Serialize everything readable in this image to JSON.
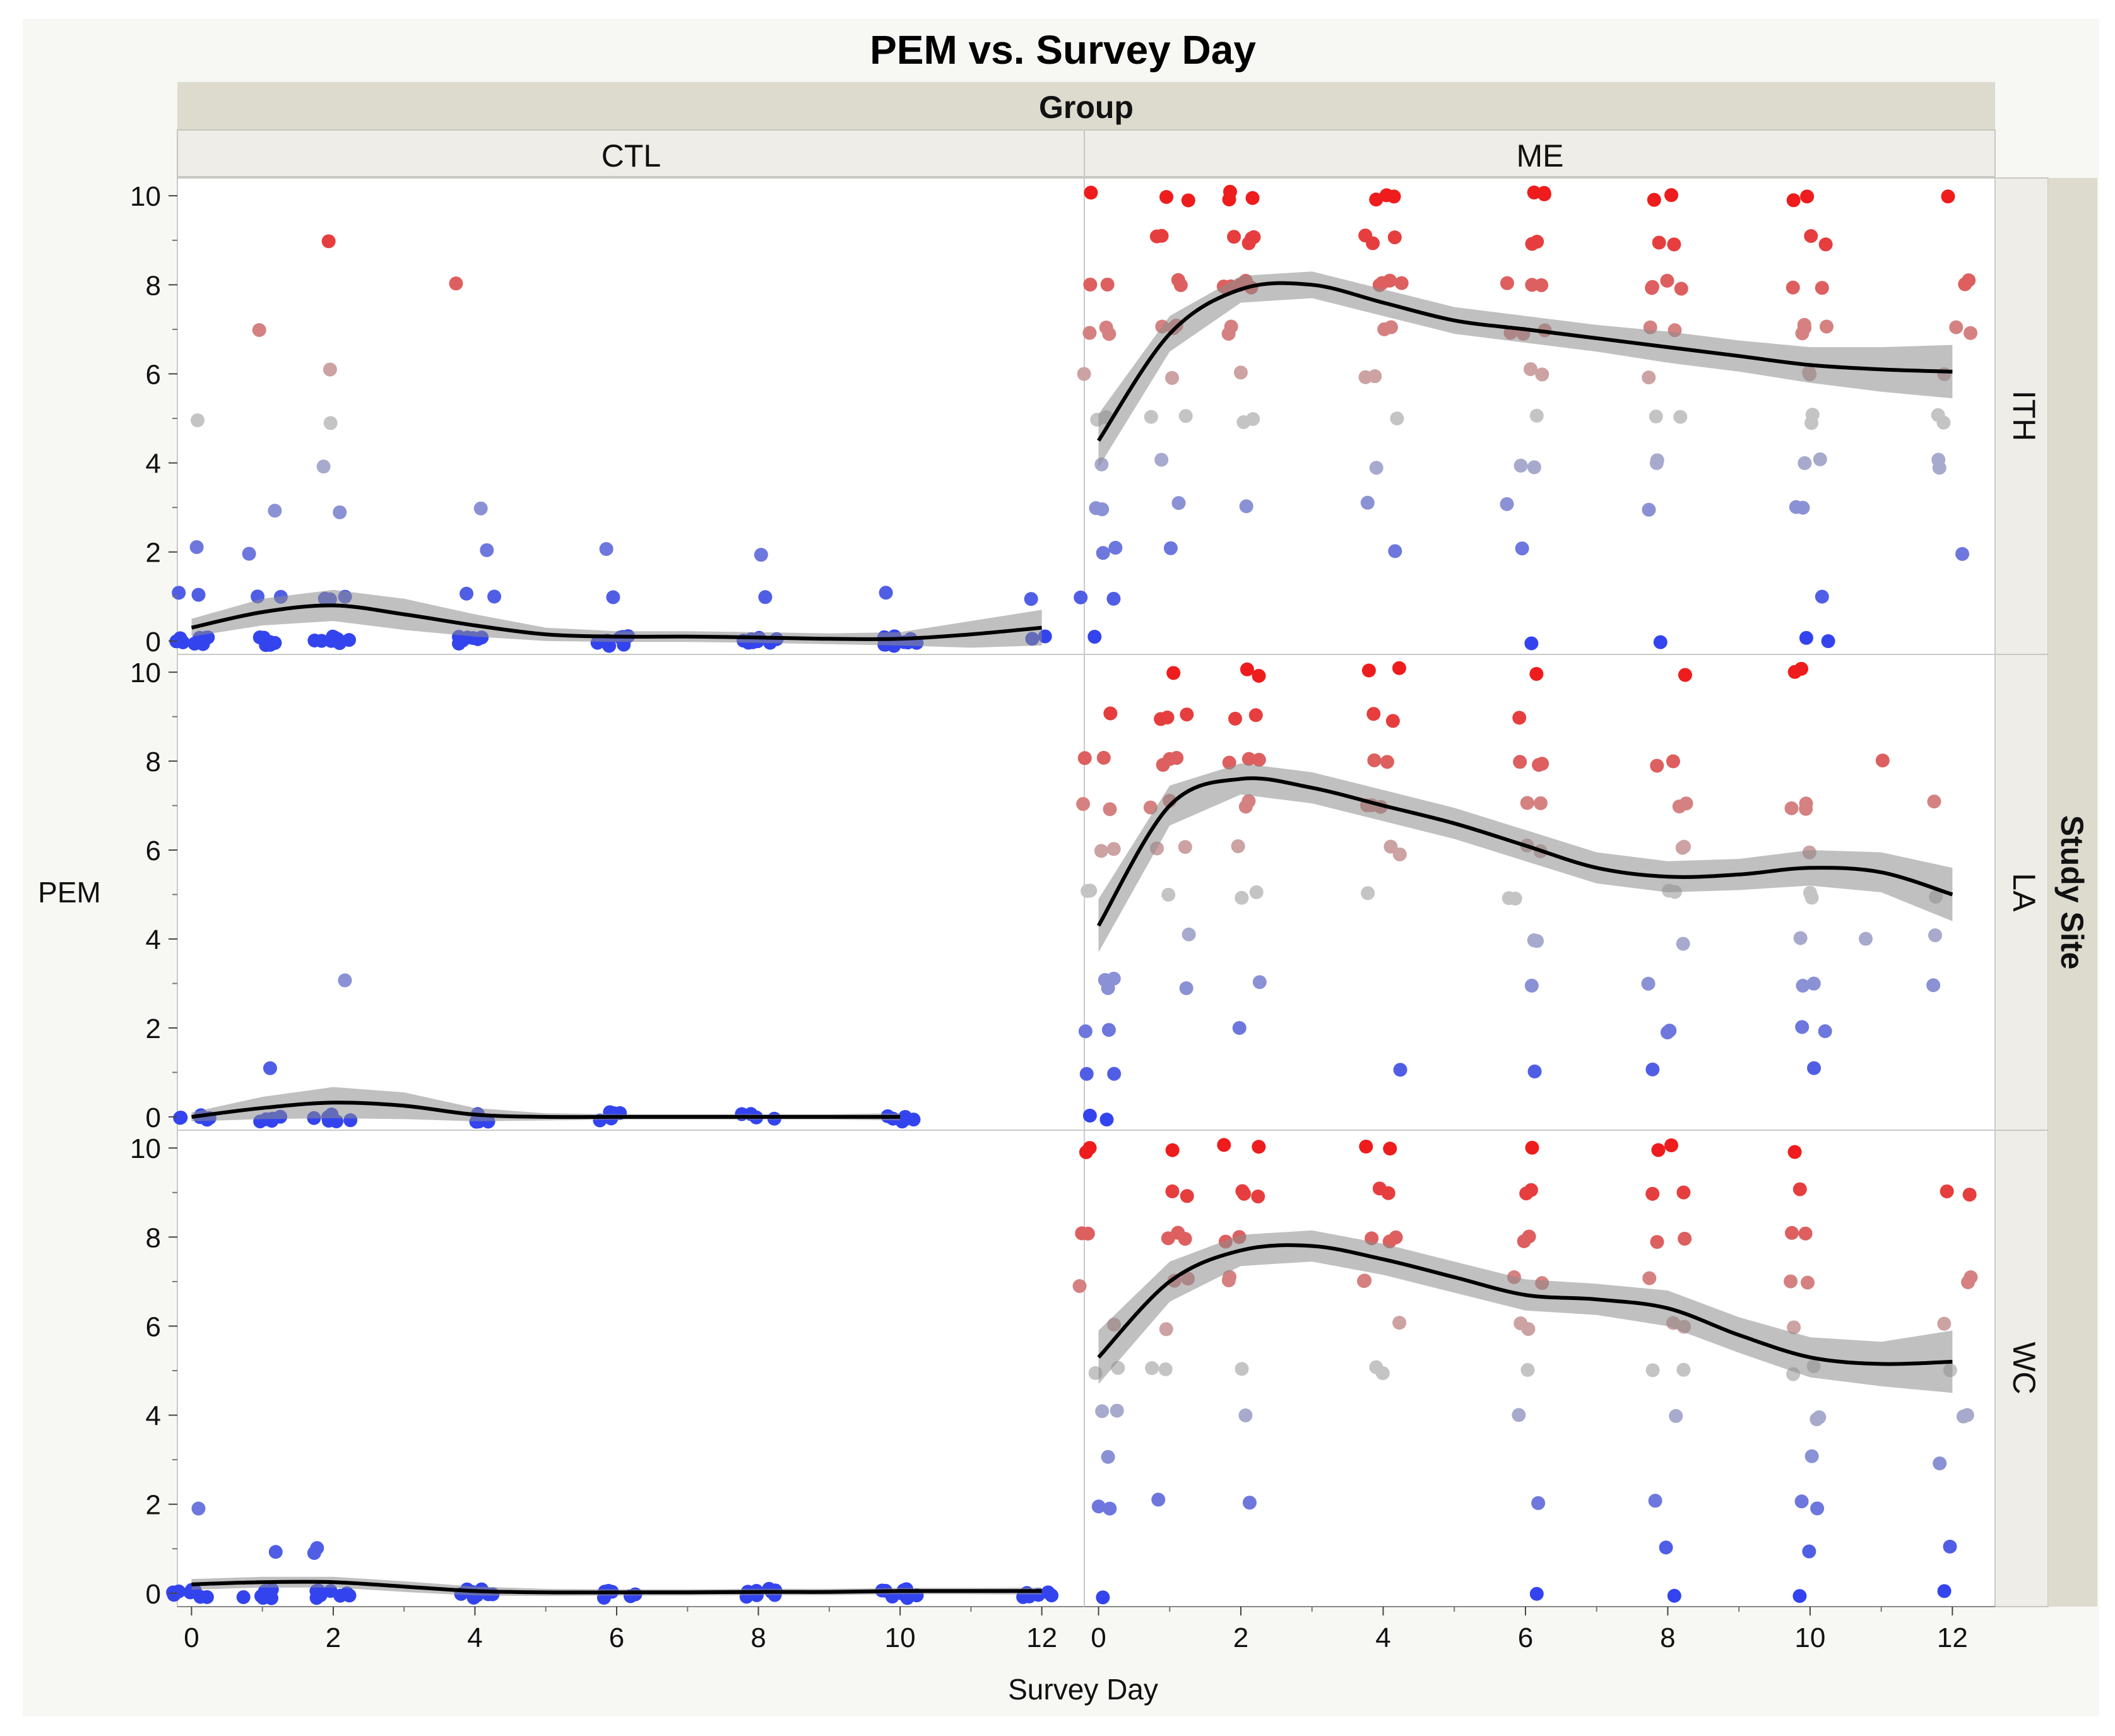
{
  "chart_data": {
    "type": "scatter",
    "title": "PEM vs. Survey Day",
    "xlabel": "Survey Day",
    "ylabel": "PEM",
    "column_group_label": "Group",
    "row_group_label": "Study Site",
    "columns": [
      "CTL",
      "ME"
    ],
    "rows": [
      "ITH",
      "LA",
      "WC"
    ],
    "xlim": [
      -0.2,
      12.6
    ],
    "ylim": [
      -0.3,
      10.4
    ],
    "xticks": [
      0,
      2,
      4,
      6,
      8,
      10,
      12
    ],
    "yticks": [
      0,
      2,
      4,
      6,
      8,
      10
    ],
    "color_scale": {
      "low": "#3344ee",
      "mid": "#c4c4c4",
      "high": "#ee1c1c",
      "mid_value": 5
    },
    "panels": [
      {
        "group": "CTL",
        "site": "ITH",
        "smoother": {
          "x": [
            0,
            1,
            2,
            3,
            4,
            5,
            6,
            7,
            8,
            9,
            10,
            11,
            12
          ],
          "y": [
            0.3,
            0.65,
            0.8,
            0.6,
            0.35,
            0.15,
            0.1,
            0.1,
            0.08,
            0.05,
            0.05,
            0.15,
            0.3
          ],
          "band": [
            0.2,
            0.3,
            0.35,
            0.35,
            0.25,
            0.15,
            0.12,
            0.12,
            0.12,
            0.12,
            0.15,
            0.3,
            0.4
          ]
        },
        "points": [
          {
            "day": 0,
            "values": [
              5,
              2,
              1,
              1,
              0,
              0,
              0,
              0,
              0,
              0,
              0,
              0,
              0,
              0
            ]
          },
          {
            "day": 1,
            "values": [
              7,
              3,
              2,
              1,
              1,
              0,
              0,
              0,
              0,
              0,
              0,
              0,
              0
            ]
          },
          {
            "day": 2,
            "values": [
              9,
              6,
              5,
              4,
              3,
              1,
              1,
              1,
              0,
              0,
              0,
              0,
              0,
              0,
              0,
              0
            ]
          },
          {
            "day": 4,
            "values": [
              8,
              3,
              2,
              1,
              1,
              0,
              0,
              0,
              0,
              0,
              0,
              0
            ]
          },
          {
            "day": 6,
            "values": [
              2,
              1,
              0,
              0,
              0,
              0,
              0,
              0,
              0,
              0,
              0,
              0
            ]
          },
          {
            "day": 8,
            "values": [
              2,
              1,
              0,
              0,
              0,
              0,
              0,
              0,
              0,
              0
            ]
          },
          {
            "day": 10,
            "values": [
              1,
              0,
              0,
              0,
              0,
              0,
              0,
              0,
              0,
              0,
              0
            ]
          },
          {
            "day": 12,
            "values": [
              1,
              0,
              0
            ]
          }
        ]
      },
      {
        "group": "ME",
        "site": "ITH",
        "smoother": {
          "x": [
            0,
            1,
            2,
            3,
            4,
            5,
            6,
            7,
            8,
            9,
            10,
            11,
            12
          ],
          "y": [
            4.5,
            6.9,
            7.9,
            8.0,
            7.6,
            7.2,
            7.0,
            6.8,
            6.6,
            6.4,
            6.2,
            6.1,
            6.05
          ],
          "band": [
            0.6,
            0.4,
            0.3,
            0.3,
            0.3,
            0.3,
            0.3,
            0.3,
            0.35,
            0.35,
            0.4,
            0.5,
            0.6
          ]
        },
        "points": [
          {
            "day": 0,
            "values": [
              10,
              8,
              8,
              7,
              7,
              7,
              6,
              5,
              5,
              4,
              3,
              3,
              2,
              2,
              1,
              1,
              0
            ]
          },
          {
            "day": 1,
            "values": [
              10,
              10,
              9,
              9,
              8,
              8,
              7,
              7,
              7,
              6,
              5,
              5,
              4,
              3,
              2
            ]
          },
          {
            "day": 2,
            "values": [
              10,
              10,
              10,
              9,
              9,
              9,
              9,
              8,
              8,
              8,
              8,
              8,
              8,
              7,
              7,
              6,
              5,
              5,
              3
            ]
          },
          {
            "day": 4,
            "values": [
              10,
              10,
              10,
              9,
              9,
              9,
              8,
              8,
              8,
              8,
              7,
              7,
              6,
              6,
              5,
              4,
              3,
              2
            ]
          },
          {
            "day": 6,
            "values": [
              10,
              10,
              10,
              9,
              9,
              8,
              8,
              8,
              7,
              7,
              7,
              6,
              6,
              5,
              4,
              4,
              3,
              2,
              0
            ]
          },
          {
            "day": 8,
            "values": [
              10,
              10,
              9,
              9,
              8,
              8,
              8,
              8,
              7,
              7,
              6,
              5,
              5,
              4,
              4,
              3,
              0
            ]
          },
          {
            "day": 10,
            "values": [
              10,
              10,
              9,
              9,
              8,
              8,
              7,
              7,
              7,
              7,
              6,
              6,
              5,
              5,
              4,
              4,
              3,
              3,
              1,
              0,
              0
            ]
          },
          {
            "day": 12,
            "values": [
              10,
              8,
              8,
              7,
              7,
              6,
              5,
              5,
              4,
              4,
              2
            ]
          }
        ]
      },
      {
        "group": "CTL",
        "site": "LA",
        "smoother": {
          "x": [
            0,
            1,
            2,
            3,
            4,
            5,
            6,
            7,
            8,
            9,
            10
          ],
          "y": [
            0.0,
            0.2,
            0.32,
            0.25,
            0.05,
            0.0,
            0.0,
            0.0,
            0.0,
            0.0,
            0.0
          ],
          "band": [
            0.1,
            0.25,
            0.35,
            0.3,
            0.15,
            0.08,
            0.06,
            0.06,
            0.06,
            0.06,
            0.08
          ]
        },
        "points": [
          {
            "day": 0,
            "values": [
              0,
              0,
              0,
              0,
              0,
              0
            ]
          },
          {
            "day": 1,
            "values": [
              1,
              0,
              0,
              0,
              0,
              0
            ]
          },
          {
            "day": 2,
            "values": [
              3,
              0,
              0,
              0,
              0,
              0,
              0
            ]
          },
          {
            "day": 4,
            "values": [
              0,
              0,
              0,
              0
            ]
          },
          {
            "day": 6,
            "values": [
              0,
              0,
              0,
              0,
              0
            ]
          },
          {
            "day": 8,
            "values": [
              0,
              0,
              0,
              0
            ]
          },
          {
            "day": 10,
            "values": [
              0,
              0,
              0,
              0,
              0,
              0
            ]
          }
        ]
      },
      {
        "group": "ME",
        "site": "LA",
        "smoother": {
          "x": [
            0,
            1,
            2,
            3,
            4,
            5,
            6,
            7,
            8,
            9,
            10,
            11,
            12
          ],
          "y": [
            4.3,
            7.0,
            7.6,
            7.4,
            7.0,
            6.6,
            6.1,
            5.6,
            5.4,
            5.45,
            5.6,
            5.5,
            5.0
          ],
          "band": [
            0.6,
            0.45,
            0.35,
            0.35,
            0.35,
            0.35,
            0.35,
            0.35,
            0.35,
            0.35,
            0.4,
            0.45,
            0.6
          ]
        },
        "points": [
          {
            "day": 0,
            "values": [
              9,
              8,
              8,
              7,
              7,
              6,
              6,
              5,
              5,
              3,
              3,
              3,
              2,
              2,
              1,
              1,
              0,
              0
            ]
          },
          {
            "day": 1,
            "values": [
              10,
              9,
              9,
              9,
              8,
              8,
              8,
              7,
              7,
              6,
              6,
              5,
              4,
              3
            ]
          },
          {
            "day": 2,
            "values": [
              10,
              10,
              9,
              9,
              8,
              8,
              8,
              7,
              7,
              6,
              5,
              5,
              3,
              2
            ]
          },
          {
            "day": 4,
            "values": [
              10,
              10,
              9,
              9,
              8,
              8,
              7,
              7,
              7,
              6,
              6,
              5,
              1
            ]
          },
          {
            "day": 6,
            "values": [
              10,
              9,
              8,
              8,
              8,
              7,
              7,
              6,
              6,
              5,
              5,
              4,
              4,
              3,
              1
            ]
          },
          {
            "day": 8,
            "values": [
              10,
              8,
              8,
              7,
              7,
              6,
              6,
              5,
              5,
              4,
              3,
              2,
              2,
              1
            ]
          },
          {
            "day": 10,
            "values": [
              10,
              10,
              7,
              7,
              7,
              6,
              5,
              5,
              4,
              3,
              3,
              2,
              2,
              1
            ]
          },
          {
            "day": 11,
            "values": [
              8,
              4
            ]
          },
          {
            "day": 12,
            "values": [
              7,
              5,
              4,
              3
            ]
          }
        ]
      },
      {
        "group": "CTL",
        "site": "WC",
        "smoother": {
          "x": [
            0,
            1,
            2,
            3,
            4,
            5,
            6,
            7,
            8,
            9,
            10,
            11,
            12
          ],
          "y": [
            0.2,
            0.25,
            0.25,
            0.15,
            0.05,
            0.02,
            0.02,
            0.02,
            0.03,
            0.03,
            0.05,
            0.05,
            0.05
          ],
          "band": [
            0.12,
            0.12,
            0.12,
            0.12,
            0.1,
            0.08,
            0.07,
            0.07,
            0.07,
            0.07,
            0.07,
            0.07,
            0.08
          ]
        },
        "points": [
          {
            "day": 0,
            "values": [
              2,
              0,
              0,
              0,
              0,
              0,
              0,
              0,
              0
            ]
          },
          {
            "day": 1,
            "values": [
              1,
              0,
              0,
              0,
              0,
              0,
              0,
              0,
              0
            ]
          },
          {
            "day": 2,
            "values": [
              1,
              1,
              0,
              0,
              0,
              0,
              0,
              0,
              0,
              0
            ]
          },
          {
            "day": 4,
            "values": [
              0,
              0,
              0,
              0,
              0,
              0,
              0,
              0,
              0
            ]
          },
          {
            "day": 6,
            "values": [
              0,
              0,
              0,
              0,
              0,
              0,
              0,
              0
            ]
          },
          {
            "day": 8,
            "values": [
              0,
              0,
              0,
              0,
              0,
              0,
              0,
              0
            ]
          },
          {
            "day": 10,
            "values": [
              0,
              0,
              0,
              0,
              0,
              0,
              0,
              0,
              0
            ]
          },
          {
            "day": 12,
            "values": [
              0,
              0,
              0,
              0,
              0,
              0
            ]
          }
        ]
      },
      {
        "group": "ME",
        "site": "WC",
        "smoother": {
          "x": [
            0,
            1,
            2,
            3,
            4,
            5,
            6,
            7,
            8,
            9,
            10,
            11,
            12
          ],
          "y": [
            5.3,
            7.0,
            7.7,
            7.8,
            7.5,
            7.1,
            6.7,
            6.6,
            6.4,
            5.8,
            5.3,
            5.15,
            5.2
          ],
          "band": [
            0.6,
            0.45,
            0.35,
            0.35,
            0.35,
            0.35,
            0.35,
            0.35,
            0.4,
            0.4,
            0.45,
            0.5,
            0.7
          ]
        },
        "points": [
          {
            "day": 0,
            "values": [
              10,
              10,
              8,
              8,
              7,
              6,
              5,
              5,
              4,
              4,
              3,
              2,
              2,
              0
            ]
          },
          {
            "day": 1,
            "values": [
              10,
              9,
              9,
              8,
              8,
              8,
              7,
              7,
              6,
              5,
              5,
              2
            ]
          },
          {
            "day": 2,
            "values": [
              10,
              10,
              9,
              9,
              9,
              8,
              8,
              7,
              7,
              5,
              4,
              2
            ]
          },
          {
            "day": 4,
            "values": [
              10,
              10,
              9,
              9,
              8,
              8,
              8,
              7,
              7,
              6,
              5,
              5
            ]
          },
          {
            "day": 6,
            "values": [
              10,
              9,
              9,
              8,
              8,
              7,
              7,
              6,
              6,
              5,
              4,
              2,
              0
            ]
          },
          {
            "day": 8,
            "values": [
              10,
              10,
              9,
              9,
              8,
              8,
              7,
              6,
              6,
              5,
              5,
              4,
              2,
              1,
              0
            ]
          },
          {
            "day": 10,
            "values": [
              10,
              9,
              8,
              8,
              7,
              7,
              6,
              5,
              5,
              4,
              4,
              3,
              2,
              2,
              1,
              0
            ]
          },
          {
            "day": 12,
            "values": [
              9,
              9,
              7,
              7,
              6,
              5,
              4,
              4,
              3,
              1,
              0
            ]
          }
        ]
      }
    ]
  }
}
